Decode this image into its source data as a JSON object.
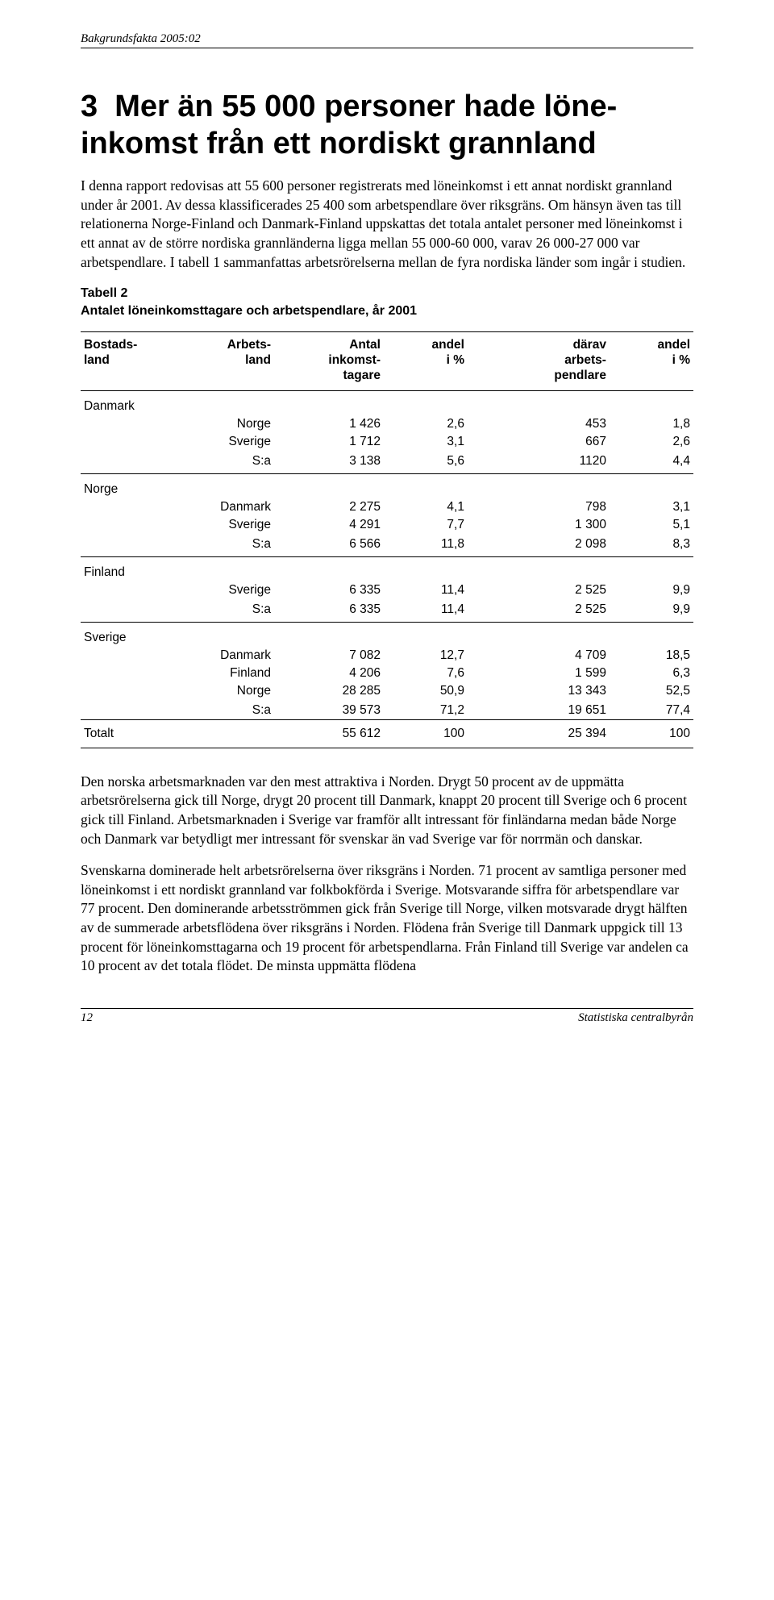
{
  "header": {
    "series": "Bakgrundsfakta 2005:02"
  },
  "section": {
    "number": "3",
    "title_l1": "Mer än 55 000 personer hade löne-",
    "title_l2": "inkomst från ett nordiskt grannland"
  },
  "para1": "I denna rapport redovisas att 55 600 personer registrerats med löneinkomst i ett annat nordiskt grannland under år 2001. Av dessa klassificerades 25 400 som arbetspendlare över riksgräns. Om hänsyn även tas till relationerna Norge-Finland och Danmark-Finland uppskattas det totala antalet personer med löneinkomst i ett annat av de större nordiska grannländerna ligga mellan 55 000-60 000, varav 26 000-27 000 var arbetspendlare. I tabell 1 sammanfattas arbetsrörelserna mellan de fyra nordiska länder som ingår i studien.",
  "table": {
    "caption_l1": "Tabell 2",
    "caption_l2": "Antalet löneinkomsttagare och arbetspendlare, år 2001",
    "headers": {
      "bostad_l1": "Bostads-",
      "bostad_l2": "land",
      "arbets_l1": "Arbets-",
      "arbets_l2": "land",
      "antal_l1": "Antal",
      "antal_l2": "inkomst-",
      "antal_l3": "tagare",
      "andel1_l1": "andel",
      "andel1_l2": "i %",
      "darav_l1": "därav",
      "darav_l2": "arbets-",
      "darav_l3": "pendlare",
      "andel2_l1": "andel",
      "andel2_l2": "i %"
    },
    "groups": [
      {
        "name": "Danmark",
        "rows": [
          {
            "arbets": "Norge",
            "antal": "1 426",
            "andel1": "2,6",
            "darav": "453",
            "andel2": "1,8"
          },
          {
            "arbets": "Sverige",
            "antal": "1 712",
            "andel1": "3,1",
            "darav": "667",
            "andel2": "2,6"
          }
        ],
        "sum": {
          "arbets": "S:a",
          "antal": "3 138",
          "andel1": "5,6",
          "darav": "1120",
          "andel2": "4,4"
        }
      },
      {
        "name": "Norge",
        "rows": [
          {
            "arbets": "Danmark",
            "antal": "2 275",
            "andel1": "4,1",
            "darav": "798",
            "andel2": "3,1"
          },
          {
            "arbets": "Sverige",
            "antal": "4 291",
            "andel1": "7,7",
            "darav": "1 300",
            "andel2": "5,1"
          }
        ],
        "sum": {
          "arbets": "S:a",
          "antal": "6 566",
          "andel1": "11,8",
          "darav": "2 098",
          "andel2": "8,3"
        }
      },
      {
        "name": "Finland",
        "rows": [
          {
            "arbets": "Sverige",
            "antal": "6 335",
            "andel1": "11,4",
            "darav": "2 525",
            "andel2": "9,9"
          }
        ],
        "sum": {
          "arbets": "S:a",
          "antal": "6 335",
          "andel1": "11,4",
          "darav": "2 525",
          "andel2": "9,9"
        }
      },
      {
        "name": "Sverige",
        "rows": [
          {
            "arbets": "Danmark",
            "antal": "7 082",
            "andel1": "12,7",
            "darav": "4 709",
            "andel2": "18,5"
          },
          {
            "arbets": "Finland",
            "antal": "4 206",
            "andel1": "7,6",
            "darav": "1 599",
            "andel2": "6,3"
          },
          {
            "arbets": "Norge",
            "antal": "28 285",
            "andel1": "50,9",
            "darav": "13 343",
            "andel2": "52,5"
          }
        ],
        "sum": {
          "arbets": "S:a",
          "antal": "39 573",
          "andel1": "71,2",
          "darav": "19 651",
          "andel2": "77,4"
        }
      }
    ],
    "total": {
      "label": "Totalt",
      "antal": "55 612",
      "andel1": "100",
      "darav": "25 394",
      "andel2": "100"
    }
  },
  "para2": "Den norska arbetsmarknaden var den mest attraktiva i Norden. Drygt 50 procent av de uppmätta arbetsrörelserna gick till Norge, drygt 20 procent till Danmark, knappt 20 procent till Sverige och 6 procent gick till Finland. Arbetsmarknaden i Sverige var framför allt intressant för finländarna medan både Norge och Danmark var betydligt mer intressant för svenskar än vad Sverige var för norrmän och danskar.",
  "para3": "Svenskarna dominerade helt arbetsrörelserna över riksgräns i Norden. 71 procent av samtliga personer med löneinkomst i ett nordiskt grannland var folkbokförda i Sverige. Motsvarande siffra för arbetspendlare var 77 procent. Den dominerande arbetsströmmen gick från Sverige till Norge, vilken motsvarade drygt hälften av de summerade arbetsflödena över riksgräns i Norden. Flödena från Sverige till Danmark uppgick till 13 procent för löneinkomsttagarna och 19 procent för arbetspendlarna. Från Finland till Sverige var andelen ca 10 procent av det totala flödet. De minsta uppmätta flödena",
  "footer": {
    "page": "12",
    "publisher": "Statistiska centralbyrån"
  }
}
